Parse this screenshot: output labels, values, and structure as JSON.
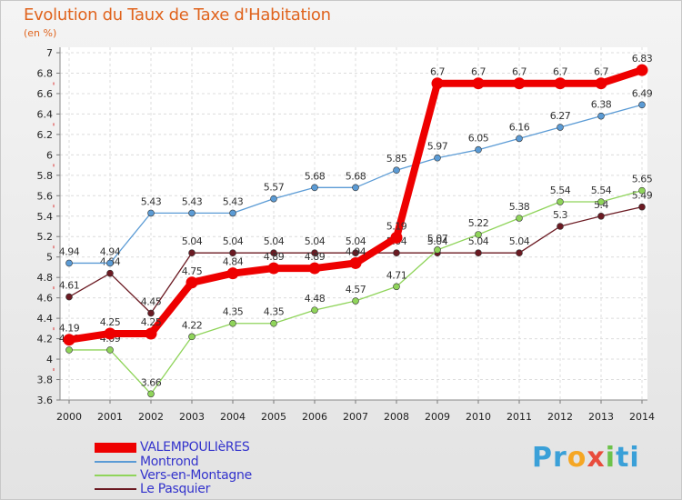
{
  "header": {
    "title": "Evolution du Taux de Taxe d'Habitation",
    "subtitle": "(en %)"
  },
  "brand": {
    "text": "Proxiti",
    "colors": [
      "#3aa0d8",
      "#f5a623",
      "#6cc24a",
      "#e84c3d"
    ]
  },
  "chart_data": {
    "type": "line",
    "title": "Evolution du Taux de Taxe d'Habitation",
    "ylabel": "(en %)",
    "xlabel": "",
    "ylim": [
      3.6,
      7
    ],
    "yticks": [
      "3.6",
      "3.8",
      "4",
      "4.2",
      "4.4",
      "4.6",
      "4.8",
      "5",
      "5.2",
      "5.4",
      "5.6",
      "5.8",
      "6",
      "6.2",
      "6.4",
      "6.6",
      "6.8",
      "7"
    ],
    "categories": [
      "2000",
      "2001",
      "2002",
      "2003",
      "2004",
      "2005",
      "2006",
      "2007",
      "2008",
      "2009",
      "2010",
      "2011",
      "2012",
      "2013",
      "2014"
    ],
    "grid": true,
    "legend": "bottom-left",
    "series": [
      {
        "name": "Le Pasquier",
        "color": "#6b1a22",
        "values": [
          4.61,
          4.84,
          4.45,
          5.04,
          5.04,
          5.04,
          5.04,
          5.04,
          5.04,
          5.04,
          5.04,
          5.04,
          5.3,
          5.4,
          5.49
        ],
        "labels": [
          "4.61",
          "4.84",
          "4.45",
          "5.04",
          "5.04",
          "5.04",
          "5.04",
          "5.04",
          "5.04",
          "5.04",
          "5.04",
          "5.04",
          "5.3",
          "5.4",
          "5.49"
        ]
      },
      {
        "name": "Vers-en-Montagne",
        "color": "#8fd45a",
        "values": [
          4.09,
          4.09,
          3.66,
          4.22,
          4.35,
          4.35,
          4.48,
          4.57,
          4.71,
          5.07,
          5.22,
          5.38,
          5.54,
          5.54,
          5.65
        ],
        "labels": [
          "4.09",
          "4.09",
          "3.66",
          "4.22",
          "4.35",
          "4.35",
          "4.48",
          "4.57",
          "4.71",
          "5.07",
          "5.22",
          "5.38",
          "5.54",
          "5.54",
          "5.65"
        ]
      },
      {
        "name": "Montrond",
        "color": "#5b9bd5",
        "values": [
          4.94,
          4.94,
          5.43,
          5.43,
          5.43,
          5.57,
          5.68,
          5.68,
          5.85,
          5.97,
          6.05,
          6.16,
          6.27,
          6.38,
          6.49
        ],
        "labels": [
          "4.94",
          "4.94",
          "5.43",
          "5.43",
          "5.43",
          "5.57",
          "5.68",
          "5.68",
          "5.85",
          "5.97",
          "6.05",
          "6.16",
          "6.27",
          "6.38",
          "6.49"
        ]
      },
      {
        "name": "VALEMPOULIèRES",
        "color": "#ee0000",
        "values": [
          4.19,
          4.25,
          4.25,
          4.75,
          4.84,
          4.89,
          4.89,
          4.94,
          5.19,
          6.7,
          6.7,
          6.7,
          6.7,
          6.7,
          6.83
        ],
        "labels": [
          "4.19",
          "4.25",
          "4.25",
          "4.75",
          "4.84",
          "4.89",
          "4.89",
          "4.94",
          "5.19",
          "6.7",
          "6.7",
          "6.7",
          "6.7",
          "6.7",
          "6.83"
        ]
      }
    ]
  },
  "legend": {
    "items": [
      {
        "label": "VALEMPOULIèRES",
        "color": "#ee0000"
      },
      {
        "label": "Montrond",
        "color": "#5b9bd5"
      },
      {
        "label": "Vers-en-Montagne",
        "color": "#8fd45a"
      },
      {
        "label": "Le Pasquier",
        "color": "#6b1a22"
      }
    ]
  }
}
